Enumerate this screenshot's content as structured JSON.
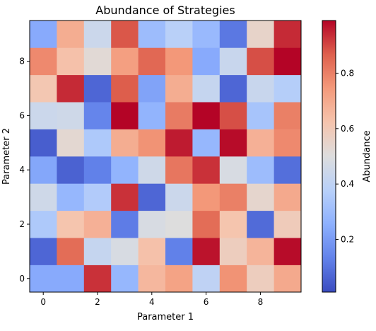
{
  "chart_data": {
    "type": "heatmap",
    "title": "Abundance of Strategies",
    "xlabel": "Parameter 1",
    "ylabel": "Parameter 2",
    "x_ticks": [
      0,
      2,
      4,
      6,
      8
    ],
    "y_ticks": [
      0,
      2,
      4,
      6,
      8
    ],
    "colormap": "coolwarm",
    "colorbar": {
      "label": "Abundance",
      "vmin": 0.01,
      "vmax": 0.99,
      "ticks": [
        0.2,
        0.4,
        0.6,
        0.8
      ]
    },
    "grid_rows": [
      {
        "y": 0,
        "values": [
          0.24,
          0.24,
          0.93,
          0.28,
          0.66,
          0.72,
          0.4,
          0.76,
          0.58,
          0.7
        ]
      },
      {
        "y": 1,
        "values": [
          0.07,
          0.84,
          0.42,
          0.48,
          0.63,
          0.13,
          0.97,
          0.58,
          0.67,
          0.98
        ]
      },
      {
        "y": 2,
        "values": [
          0.35,
          0.62,
          0.68,
          0.12,
          0.48,
          0.5,
          0.84,
          0.62,
          0.08,
          0.59
        ]
      },
      {
        "y": 3,
        "values": [
          0.45,
          0.28,
          0.36,
          0.93,
          0.07,
          0.44,
          0.75,
          0.8,
          0.54,
          0.7
        ]
      },
      {
        "y": 4,
        "values": [
          0.23,
          0.06,
          0.13,
          0.27,
          0.45,
          0.82,
          0.93,
          0.48,
          0.3,
          0.09
        ]
      },
      {
        "y": 5,
        "values": [
          0.05,
          0.53,
          0.35,
          0.69,
          0.76,
          0.96,
          0.28,
          0.98,
          0.68,
          0.78
        ]
      },
      {
        "y": 6,
        "values": [
          0.44,
          0.45,
          0.14,
          0.99,
          0.27,
          0.81,
          0.99,
          0.89,
          0.33,
          0.8
        ]
      },
      {
        "y": 7,
        "values": [
          0.61,
          0.94,
          0.07,
          0.87,
          0.22,
          0.69,
          0.42,
          0.07,
          0.43,
          0.37
        ]
      },
      {
        "y": 8,
        "values": [
          0.78,
          0.63,
          0.52,
          0.73,
          0.85,
          0.75,
          0.24,
          0.43,
          0.89,
          0.99
        ]
      },
      {
        "y": 9,
        "values": [
          0.24,
          0.69,
          0.44,
          0.88,
          0.3,
          0.38,
          0.29,
          0.11,
          0.55,
          0.94
        ]
      }
    ]
  }
}
